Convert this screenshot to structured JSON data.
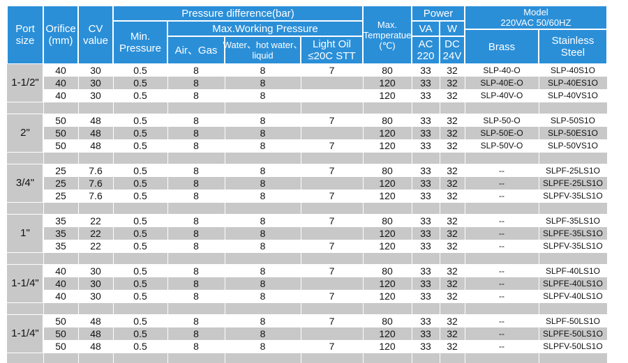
{
  "header": {
    "port_size": [
      "Port",
      "size"
    ],
    "orifice": [
      "Orifice",
      "(mm)"
    ],
    "cv": [
      "CV",
      "value"
    ],
    "pressure_difference": "Pressure difference(bar)",
    "min_pressure": [
      "Min.",
      "Pressure"
    ],
    "max_working_pressure": "Max.Working Pressure",
    "air_gas": "Air、Gas",
    "water": [
      "Water、hot water、",
      "liquid"
    ],
    "light_oil": [
      "Light Oil",
      "≤20C STT"
    ],
    "max_temperature": [
      "Max.",
      "Temperatue",
      "(℃)"
    ],
    "power": "Power",
    "va": "VA",
    "w": "W",
    "ac220": [
      "AC",
      "220"
    ],
    "dc24v": [
      "DC",
      "24V"
    ],
    "model": [
      "Model",
      "220VAC 50/60HZ"
    ],
    "brass": "Brass",
    "stainless_steel": [
      "Stainless",
      "Steel"
    ]
  },
  "table": {
    "groups": [
      {
        "port_size": "1-1/2\"",
        "rows": [
          [
            40,
            30,
            0.5,
            8,
            8,
            7,
            80,
            33,
            32,
            "SLP-40-O",
            "SLP-40S1O"
          ],
          [
            40,
            30,
            0.5,
            8,
            8,
            null,
            120,
            33,
            32,
            "SLP-40E-O",
            "SLP-40ES1O"
          ],
          [
            40,
            30,
            0.5,
            8,
            8,
            null,
            120,
            33,
            32,
            "SLP-40V-O",
            "SLP-40VS1O"
          ]
        ]
      },
      {
        "port_size": "2\"",
        "rows": [
          [
            50,
            48,
            0.5,
            8,
            8,
            7,
            80,
            33,
            32,
            "SLP-50-O",
            "SLP-50S1O"
          ],
          [
            50,
            48,
            0.5,
            8,
            8,
            null,
            120,
            33,
            32,
            "SLP-50E-O",
            "SLP-50ES1O"
          ],
          [
            50,
            48,
            0.5,
            8,
            8,
            7,
            120,
            33,
            32,
            "SLP-50V-O",
            "SLP-50VS1O"
          ]
        ]
      },
      {
        "port_size": "3/4\"",
        "rows": [
          [
            25,
            7.6,
            0.5,
            8,
            8,
            7,
            80,
            33,
            32,
            "--",
            "SLPF-25LS1O"
          ],
          [
            25,
            7.6,
            0.5,
            8,
            8,
            null,
            120,
            33,
            32,
            "--",
            "SLPFE-25LS1O"
          ],
          [
            25,
            7.6,
            0.5,
            8,
            8,
            7,
            120,
            33,
            32,
            "--",
            "SLPFV-35LS1O"
          ]
        ]
      },
      {
        "port_size": "1\"",
        "rows": [
          [
            35,
            22,
            0.5,
            8,
            8,
            7,
            80,
            33,
            32,
            "--",
            "SLPF-35LS1O"
          ],
          [
            35,
            22,
            0.5,
            8,
            8,
            null,
            120,
            33,
            32,
            "--",
            "SLPFE-35LS1O"
          ],
          [
            35,
            22,
            0.5,
            8,
            8,
            7,
            120,
            33,
            32,
            "--",
            "SLPFV-35LS1O"
          ]
        ]
      },
      {
        "port_size": "1-1/4\"",
        "rows": [
          [
            40,
            30,
            0.5,
            8,
            8,
            7,
            80,
            33,
            32,
            "--",
            "SLPF-40LS1O"
          ],
          [
            40,
            30,
            0.5,
            8,
            8,
            null,
            120,
            33,
            32,
            "--",
            "SLPFE-40LS1O"
          ],
          [
            40,
            30,
            0.5,
            8,
            8,
            7,
            120,
            33,
            32,
            "--",
            "SLPFV-40LS1O"
          ]
        ]
      },
      {
        "port_size": "1-1/4\"",
        "rows": [
          [
            50,
            48,
            0.5,
            8,
            8,
            7,
            80,
            33,
            32,
            "--",
            "SLPF-50LS1O"
          ],
          [
            50,
            48,
            0.5,
            8,
            8,
            null,
            120,
            33,
            32,
            "--",
            "SLPFE-50LS1O"
          ],
          [
            50,
            48,
            0.5,
            8,
            8,
            7,
            120,
            33,
            32,
            "--",
            "SLPFV-50LS1O"
          ]
        ]
      }
    ]
  }
}
